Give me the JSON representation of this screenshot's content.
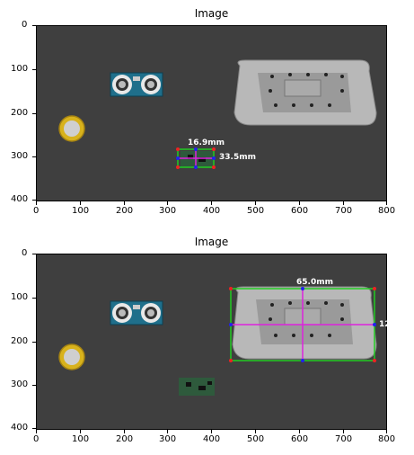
{
  "panels": [
    {
      "title": "Image",
      "x_ticks": [
        "0",
        "100",
        "200",
        "300",
        "400",
        "500",
        "600",
        "700",
        "800"
      ],
      "y_ticks": [
        "0",
        "100",
        "200",
        "300",
        "400"
      ],
      "measurements": {
        "width_label": "16.9mm",
        "height_label": "33.5mm"
      }
    },
    {
      "title": "Image",
      "x_ticks": [
        "0",
        "100",
        "200",
        "300",
        "400",
        "500",
        "600",
        "700",
        "800"
      ],
      "y_ticks": [
        "0",
        "100",
        "200",
        "300",
        "400"
      ],
      "measurements": {
        "width_label": "65.0mm",
        "height_label": "12"
      }
    }
  ],
  "colors": {
    "background": "#3f3f3f",
    "box_outline": "#22cc22",
    "midline": "#dd22dd",
    "corner": "#ee2222",
    "midpoint": "#2222ee"
  }
}
